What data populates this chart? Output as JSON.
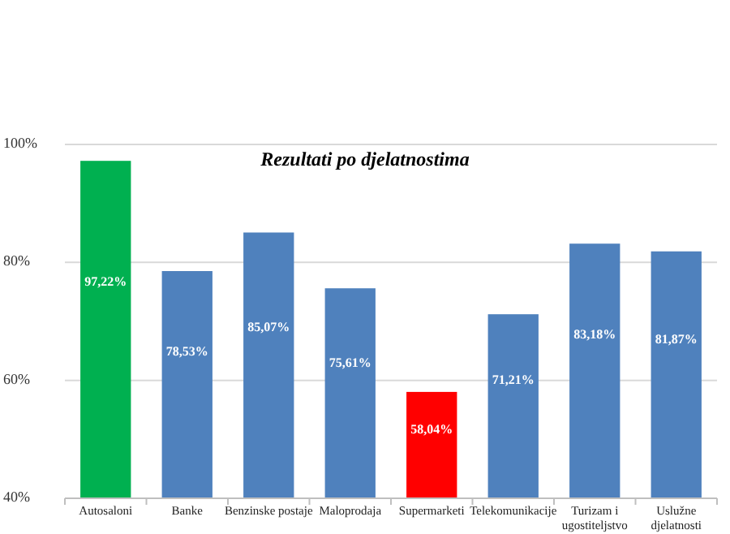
{
  "chart_data": {
    "type": "bar",
    "title": "Rezultati po djelatnostima",
    "categories": [
      "Autosaloni",
      "Banke",
      "Benzinske postaje",
      "Maloprodaja",
      "Supermarketi",
      "Telekomunikacije",
      "Turizam i ugostiteljstvo",
      "Uslužne djelatnosti"
    ],
    "values": [
      97.22,
      78.53,
      85.07,
      75.61,
      58.04,
      71.21,
      83.18,
      81.87
    ],
    "colors": [
      "#00b050",
      "#4f81bd",
      "#4f81bd",
      "#4f81bd",
      "#ff0000",
      "#4f81bd",
      "#4f81bd",
      "#4f81bd"
    ],
    "value_labels": [
      "97,22%",
      "78,53%",
      "85,07%",
      "75,61%",
      "58,04%",
      "71,21%",
      "83,18%",
      "81,87%"
    ],
    "ylim": [
      40,
      100
    ],
    "yticks": [
      {
        "value": 40,
        "label": "40%"
      },
      {
        "value": 60,
        "label": "60%"
      },
      {
        "value": 80,
        "label": "80%"
      },
      {
        "value": 100,
        "label": "100%"
      }
    ],
    "grid": true
  }
}
